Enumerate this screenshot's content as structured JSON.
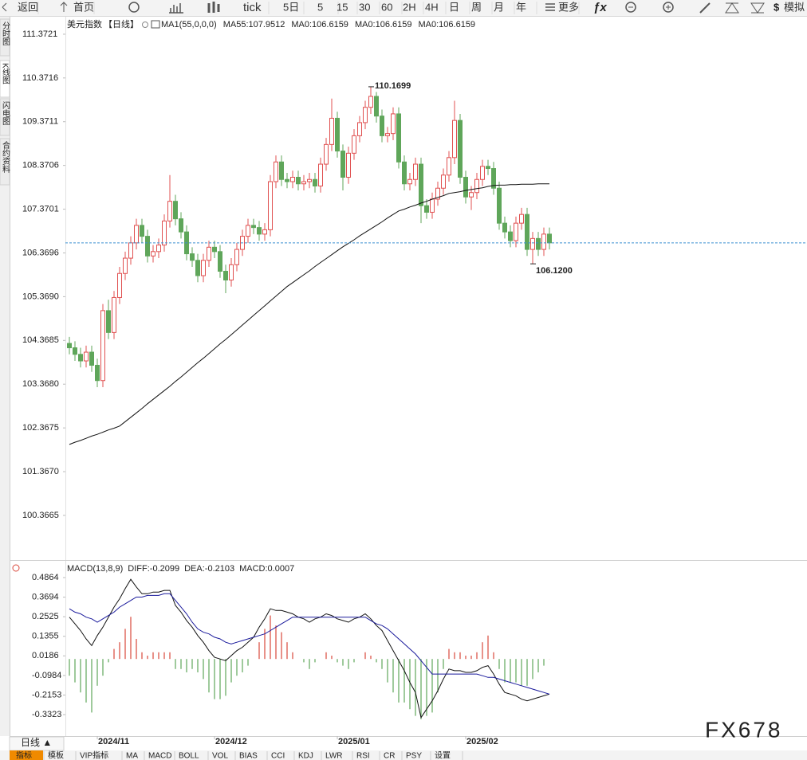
{
  "toolbar": {
    "items": [
      "返回",
      "首页",
      "tick",
      "5日",
      "5",
      "15",
      "30",
      "60",
      "2H",
      "4H",
      "日",
      "周",
      "月",
      "年",
      "更多",
      "模拟"
    ]
  },
  "sidebar": {
    "tabs": [
      "分时图",
      "K线图",
      "闪电图",
      "合约资料"
    ]
  },
  "chart_data": [
    {
      "type": "candlestick",
      "title": "美元指数",
      "period": "【日线】",
      "legend": [
        {
          "label": "MA1(55,0,0,0)",
          "color": "#222222"
        },
        {
          "label": "MA55:107.9512",
          "color": "#222222"
        },
        {
          "label": "MA0:106.6159",
          "color": "#1a1a9c"
        },
        {
          "label": "MA0:106.6159",
          "color": "#d020c0"
        },
        {
          "label": "MA0:106.6159",
          "color": "#f08a00"
        }
      ],
      "candles": {
        "open": [
          104.3,
          104.2,
          104.05,
          103.9,
          104.1,
          103.8,
          103.45,
          105.05,
          104.55,
          105.35,
          105.9,
          106.25,
          106.6,
          107.0,
          106.75,
          106.3,
          106.4,
          106.55,
          107.1,
          107.55,
          107.15,
          106.85,
          106.35,
          106.2,
          105.85,
          106.2,
          106.5,
          106.4,
          105.95,
          105.75,
          106.1,
          106.45,
          106.75,
          107.0,
          106.95,
          106.8,
          106.9,
          108.0,
          108.45,
          108.05,
          108.0,
          108.1,
          107.95,
          108.0,
          108.05,
          107.9,
          108.4,
          108.85,
          109.45,
          108.7,
          108.1,
          108.65,
          109.05,
          109.35,
          109.7,
          109.95,
          109.5,
          109.05,
          109.1,
          109.55,
          108.45,
          107.95,
          108.05,
          108.4,
          107.45,
          107.3,
          107.6,
          107.85,
          108.15,
          108.55,
          109.4,
          108.1,
          107.65,
          107.75,
          108.05,
          108.35,
          108.3,
          107.85,
          107.05,
          106.85,
          106.65,
          107.05,
          107.25,
          106.45,
          106.7,
          106.45,
          106.8
        ],
        "high": [
          104.45,
          104.35,
          104.2,
          104.25,
          104.25,
          103.95,
          105.2,
          105.3,
          105.5,
          106.05,
          106.4,
          106.75,
          107.15,
          107.15,
          106.9,
          106.55,
          106.7,
          107.25,
          108.15,
          107.7,
          107.3,
          107.0,
          106.5,
          106.35,
          106.35,
          106.65,
          106.65,
          106.55,
          106.1,
          106.25,
          106.6,
          106.9,
          107.15,
          107.15,
          107.1,
          107.05,
          108.15,
          108.6,
          108.6,
          108.2,
          108.25,
          108.25,
          108.15,
          108.2,
          108.2,
          108.55,
          109.0,
          109.9,
          109.6,
          108.85,
          108.8,
          109.2,
          109.5,
          109.85,
          110.1699,
          110.05,
          109.65,
          109.25,
          109.7,
          109.7,
          108.6,
          108.2,
          108.55,
          108.55,
          107.6,
          107.75,
          108.0,
          108.3,
          108.7,
          109.85,
          109.55,
          108.25,
          107.9,
          108.2,
          108.5,
          108.5,
          108.45,
          108.0,
          107.2,
          107.0,
          107.2,
          107.4,
          107.4,
          106.85,
          106.85,
          106.95,
          106.95
        ],
        "low": [
          104.05,
          103.9,
          103.75,
          103.75,
          103.65,
          103.3,
          103.3,
          104.4,
          104.4,
          105.2,
          105.75,
          106.1,
          106.45,
          106.6,
          106.15,
          106.15,
          106.25,
          106.4,
          106.95,
          107.0,
          106.7,
          106.2,
          106.05,
          105.7,
          105.7,
          106.05,
          106.25,
          105.8,
          105.45,
          105.6,
          105.95,
          106.3,
          106.6,
          106.8,
          106.65,
          106.65,
          106.75,
          107.85,
          107.9,
          107.85,
          107.85,
          107.8,
          107.8,
          107.85,
          107.75,
          107.75,
          108.25,
          108.7,
          108.55,
          107.8,
          107.95,
          108.5,
          108.9,
          109.2,
          109.55,
          109.35,
          108.9,
          108.9,
          108.95,
          108.3,
          107.8,
          107.8,
          107.9,
          107.05,
          107.15,
          107.15,
          107.45,
          107.7,
          108.0,
          108.4,
          107.95,
          107.5,
          107.35,
          107.6,
          107.9,
          108.15,
          107.7,
          106.9,
          106.7,
          106.5,
          106.5,
          106.9,
          106.3,
          106.12,
          106.3,
          106.3,
          106.45
        ],
        "close": [
          104.2,
          104.05,
          103.9,
          104.1,
          103.8,
          103.45,
          105.05,
          104.55,
          105.35,
          105.9,
          106.25,
          106.6,
          107.0,
          106.75,
          106.3,
          106.4,
          106.55,
          107.1,
          107.55,
          107.15,
          106.85,
          106.35,
          106.2,
          105.85,
          106.2,
          106.5,
          106.4,
          105.95,
          105.75,
          106.1,
          106.45,
          106.75,
          107.0,
          106.95,
          106.8,
          106.9,
          108.0,
          108.45,
          108.05,
          108.0,
          108.1,
          107.95,
          108.0,
          108.05,
          107.9,
          108.4,
          108.85,
          109.45,
          108.7,
          108.1,
          108.65,
          109.05,
          109.35,
          109.7,
          109.95,
          109.5,
          109.05,
          109.1,
          109.55,
          108.45,
          107.95,
          108.05,
          108.4,
          107.45,
          107.3,
          107.6,
          107.85,
          108.15,
          108.55,
          109.4,
          108.1,
          107.65,
          107.75,
          108.05,
          108.35,
          108.3,
          107.85,
          107.05,
          106.85,
          106.65,
          107.05,
          107.25,
          106.45,
          106.7,
          106.45,
          106.8,
          106.6
        ],
        "up_color": "#e05050",
        "down_color": "#5fa65a"
      },
      "ma": {
        "color": "#111111",
        "values": [
          101.99,
          102.04,
          102.08,
          102.13,
          102.18,
          102.22,
          102.27,
          102.32,
          102.36,
          102.41,
          102.51,
          102.61,
          102.71,
          102.81,
          102.92,
          103.02,
          103.12,
          103.22,
          103.32,
          103.43,
          103.53,
          103.64,
          103.75,
          103.86,
          103.96,
          104.07,
          104.18,
          104.29,
          104.39,
          104.5,
          104.61,
          104.72,
          104.83,
          104.94,
          105.05,
          105.16,
          105.27,
          105.38,
          105.49,
          105.6,
          105.69,
          105.78,
          105.87,
          105.96,
          106.06,
          106.15,
          106.24,
          106.33,
          106.42,
          106.51,
          106.59,
          106.67,
          106.76,
          106.84,
          106.92,
          107.0,
          107.08,
          107.17,
          107.25,
          107.33,
          107.37,
          107.42,
          107.46,
          107.51,
          107.55,
          107.6,
          107.64,
          107.68,
          107.73,
          107.75,
          107.77,
          107.8,
          107.82,
          107.84,
          107.86,
          107.89,
          107.91,
          107.92,
          107.92,
          107.93,
          107.93,
          107.94,
          107.94,
          107.94,
          107.95,
          107.95,
          107.9512
        ]
      },
      "max_label": {
        "value": 110.1699,
        "label": "110.1699",
        "color": "#d9483b"
      },
      "min_label": {
        "value": 106.12,
        "label": "106.1200",
        "color": "#5fa65a"
      },
      "last_price_line": {
        "color": "#3a8fd0"
      },
      "ylim": [
        99.4,
        111.79
      ],
      "yticks": [
        111.3721,
        110.3716,
        109.3711,
        108.3706,
        107.3701,
        106.3696,
        {
          "value": 105.369,
          "label": "105.3690"
        },
        104.3685,
        {
          "value": 103.368,
          "label": "103.3680"
        },
        102.3675,
        {
          "value": 101.367,
          "label": "101.3670"
        },
        100.3665
      ],
      "xticks": [
        {
          "value": 5,
          "label": "2024/11"
        },
        {
          "value": 26,
          "label": "2024/12"
        },
        {
          "value": 48,
          "label": "2025/01"
        },
        {
          "value": 71,
          "label": "2025/02"
        }
      ],
      "grid": false
    },
    {
      "type": "macd",
      "legend": [
        {
          "label": "MACD(13,8,9)",
          "color": "#222222"
        },
        {
          "label": "DIFF:-0.2099",
          "color": "#222222"
        },
        {
          "label": "DEA:-0.2103",
          "color": "#1a1a9c"
        },
        {
          "label": "MACD:0.0007",
          "color": "#d020c0"
        }
      ],
      "diff": {
        "color": "#111111",
        "values": [
          0.25,
          0.21,
          0.17,
          0.12,
          0.08,
          0.14,
          0.19,
          0.25,
          0.31,
          0.36,
          0.42,
          0.476,
          0.43,
          0.39,
          0.39,
          0.4,
          0.4,
          0.41,
          0.41,
          0.32,
          0.28,
          0.23,
          0.19,
          0.14,
          0.1,
          0.05,
          0.01,
          0,
          -0.01,
          0.02,
          0.05,
          0.07,
          0.1,
          0.13,
          0.19,
          0.24,
          0.3,
          0.29,
          0.29,
          0.28,
          0.27,
          0.25,
          0.24,
          0.22,
          0.24,
          0.25,
          0.27,
          0.26,
          0.24,
          0.23,
          0.22,
          0.24,
          0.25,
          0.27,
          0.24,
          0.2,
          0.17,
          0.11,
          0.05,
          -0.01,
          -0.07,
          -0.14,
          -0.2,
          -0.35,
          -0.3,
          -0.25,
          -0.19,
          -0.12,
          -0.06,
          -0.07,
          -0.07,
          -0.08,
          -0.08,
          -0.07,
          -0.05,
          -0.04,
          -0.09,
          -0.15,
          -0.2,
          -0.21,
          -0.22,
          -0.24,
          -0.25,
          -0.24,
          -0.23,
          -0.22,
          -0.2099
        ]
      },
      "dea": {
        "color": "#1a1a9c",
        "values": [
          0.3,
          0.28,
          0.27,
          0.25,
          0.24,
          0.22,
          0.24,
          0.26,
          0.28,
          0.31,
          0.33,
          0.35,
          0.37,
          0.37,
          0.38,
          0.38,
          0.38,
          0.39,
          0.39,
          0.35,
          0.31,
          0.27,
          0.22,
          0.18,
          0.16,
          0.15,
          0.13,
          0.12,
          0.1,
          0.09,
          0.1,
          0.11,
          0.12,
          0.13,
          0.14,
          0.15,
          0.17,
          0.19,
          0.21,
          0.23,
          0.25,
          0.25,
          0.25,
          0.25,
          0.25,
          0.25,
          0.25,
          0.25,
          0.25,
          0.25,
          0.25,
          0.25,
          0.25,
          0.25,
          0.23,
          0.21,
          0.2,
          0.18,
          0.15,
          0.12,
          0.09,
          0.06,
          0.03,
          -0.01,
          -0.05,
          -0.09,
          -0.09,
          -0.09,
          -0.09,
          -0.09,
          -0.09,
          -0.09,
          -0.09,
          -0.09,
          -0.1,
          -0.11,
          -0.11,
          -0.12,
          -0.13,
          -0.14,
          -0.15,
          -0.16,
          -0.17,
          -0.18,
          -0.19,
          -0.2,
          -0.2103
        ]
      },
      "macd": {
        "up_color": "#d9483b",
        "down_color": "#5fa65a",
        "values": [
          -0.1,
          -0.14,
          -0.2,
          -0.26,
          -0.32,
          -0.16,
          -0.1,
          -0.02,
          0.06,
          0.1,
          0.18,
          0.252,
          0.12,
          0.04,
          0.02,
          0.04,
          0.04,
          0.04,
          0.04,
          -0.06,
          -0.06,
          -0.08,
          -0.06,
          -0.08,
          -0.12,
          -0.2,
          -0.24,
          -0.24,
          -0.22,
          -0.14,
          -0.1,
          -0.08,
          -0.04,
          0,
          0.1,
          0.18,
          0.26,
          0.2,
          0.16,
          0.1,
          0.04,
          0,
          -0.02,
          -0.06,
          -0.02,
          0,
          0.04,
          0.02,
          -0.02,
          -0.04,
          -0.06,
          -0.02,
          0,
          0.04,
          0.02,
          -0.02,
          -0.06,
          -0.14,
          -0.2,
          -0.26,
          -0.26,
          -0.3,
          -0.34,
          -0.36,
          -0.34,
          -0.32,
          -0.2,
          -0.06,
          0.06,
          0.04,
          0.04,
          0.02,
          0.02,
          0.04,
          0.1,
          0.14,
          0.04,
          -0.06,
          -0.14,
          -0.14,
          -0.14,
          -0.16,
          -0.16,
          -0.12,
          -0.08,
          -0.04,
          0.0007
        ]
      },
      "ylim": [
        -0.4418,
        0.5816
      ],
      "yticks": [
        0.4864,
        0.3694,
        0.2525,
        0.1355,
        0.0186,
        -0.0984,
        -0.2153,
        -0.3323
      ]
    }
  ],
  "bottom": {
    "period_tab": "日线 ▲",
    "tabs": [
      "指标",
      "模板",
      "VIP指标",
      "MA",
      "MACD",
      "BOLL",
      "VOL",
      "BIAS",
      "CCI",
      "KDJ",
      "LWR",
      "RSI",
      "CR",
      "PSY",
      "设置"
    ]
  },
  "watermark": "FX678"
}
